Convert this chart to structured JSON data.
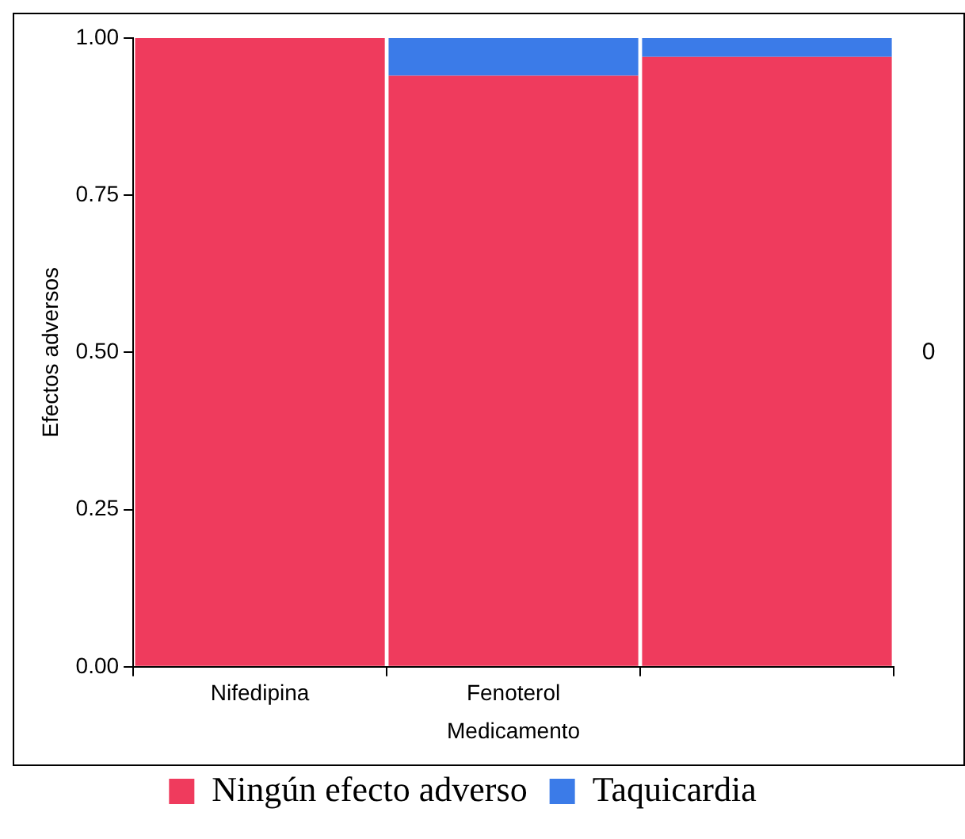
{
  "chart_data": {
    "type": "bar",
    "stacked": true,
    "xlabel": "Medicamento",
    "ylabel": "Efectos adversos",
    "categories": [
      "Nifedipina",
      "Fenoterol",
      null
    ],
    "series": [
      {
        "name": "Ningún efecto adverso",
        "color": "#ef3b5d",
        "values": [
          1.0,
          0.94,
          0.97
        ]
      },
      {
        "name": "Taquicardia",
        "color": "#3b7be8",
        "values": [
          0,
          0.06,
          0.03
        ]
      }
    ],
    "ylim": [
      0,
      1
    ],
    "yticks": [
      {
        "value": 0,
        "label": "0.00"
      },
      {
        "value": 0.25,
        "label": "0.25"
      },
      {
        "value": 0.5,
        "label": "0.50"
      },
      {
        "value": 0.75,
        "label": "0.75"
      },
      {
        "value": 1,
        "label": "1.00"
      }
    ],
    "grid": false,
    "legend": "bottom",
    "annotations": [
      "0"
    ]
  }
}
